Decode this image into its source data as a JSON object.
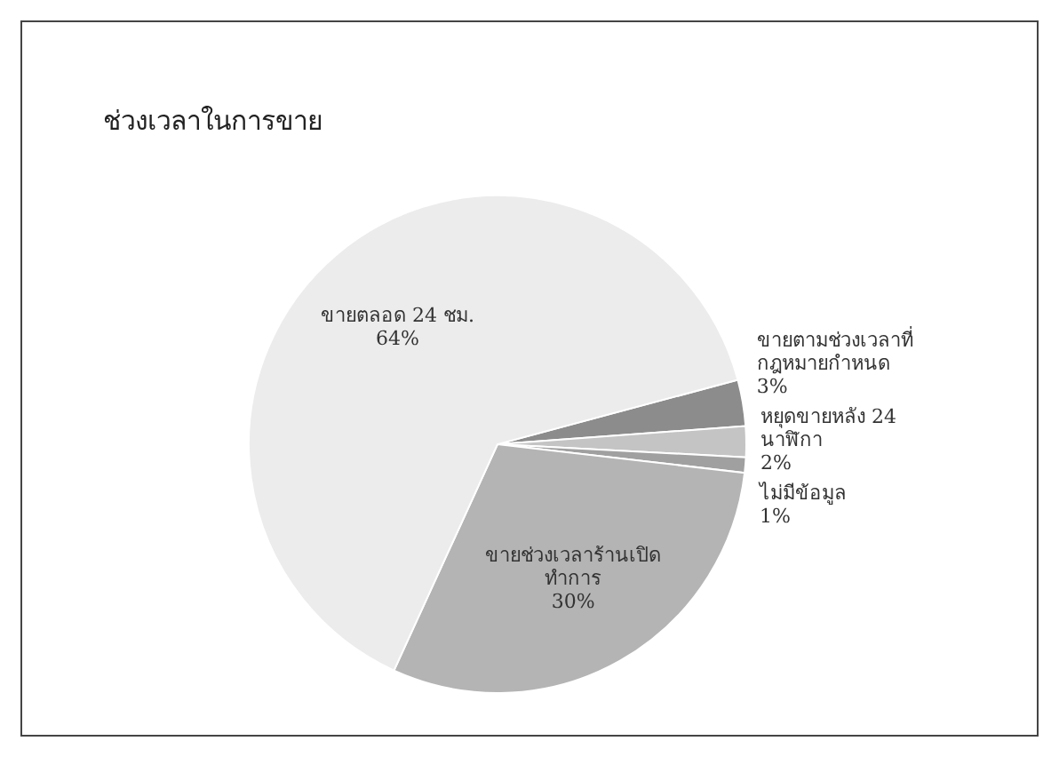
{
  "chart_data": {
    "type": "pie",
    "title": "ช่วงเวลาในการขาย",
    "categories": [
      "ขายตามช่วงเวลาที่กฎหมายกำหนด",
      "หยุดขายหลัง 24 นาฬิกา",
      "ไม่มีข้อมูล",
      "ขายช่วงเวลาร้านเปิดทำการ",
      "ขายตลอด 24 ชม."
    ],
    "values": [
      3,
      2,
      1,
      30,
      64
    ],
    "colors": [
      "#8c8c8c",
      "#c4c4c4",
      "#a0a0a0",
      "#b4b4b4",
      "#ececec"
    ],
    "value_labels": [
      "3%",
      "2%",
      "1%",
      "30%",
      "64%"
    ],
    "legend": false
  }
}
